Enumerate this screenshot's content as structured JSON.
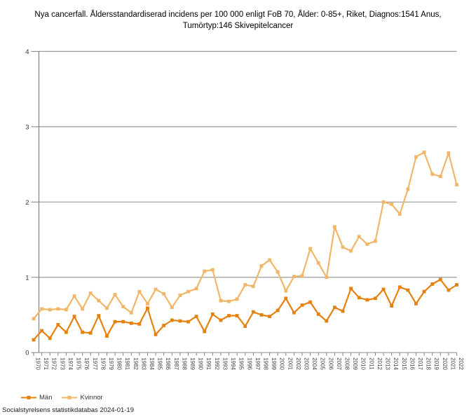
{
  "title": "Nya cancerfall. Åldersstandardiserad incidens per 100 000 enligt FoB 70, Ålder: 0-85+, Riket, Diagnos:1541 Anus, Tumörtyp:146 Skivepitelcancer",
  "source": "Socialstyrelsens statistikdatabas 2024-01-19",
  "colors": {
    "men_series": "#E6810E",
    "women_series": "#F2B669",
    "gridline": "#9A9A9A",
    "axis": "#808080",
    "tick_label": "#444444"
  },
  "legend": {
    "items": [
      "Män",
      "Kvinnor"
    ]
  },
  "chart_data": {
    "type": "line",
    "title": "Nya cancerfall. Åldersstandardiserad incidens per 100 000 enligt FoB 70, Ålder: 0-85+, Riket, Diagnos:1541 Anus, Tumörtyp:146 Skivepitelcancer",
    "x": [
      1970,
      1971,
      1972,
      1973,
      1974,
      1975,
      1976,
      1977,
      1978,
      1979,
      1980,
      1981,
      1982,
      1983,
      1984,
      1985,
      1986,
      1987,
      1988,
      1989,
      1990,
      1991,
      1992,
      1993,
      1994,
      1995,
      1996,
      1997,
      1998,
      1999,
      2000,
      2001,
      2002,
      2003,
      2004,
      2005,
      2006,
      2007,
      2008,
      2009,
      2010,
      2011,
      2012,
      2013,
      2014,
      2015,
      2016,
      2017,
      2018,
      2019,
      2020,
      2021,
      2022
    ],
    "series": [
      {
        "name": "Män",
        "color": "#E6810E",
        "values": [
          0.17,
          0.29,
          0.19,
          0.37,
          0.27,
          0.48,
          0.27,
          0.26,
          0.49,
          0.22,
          0.41,
          0.41,
          0.39,
          0.38,
          0.59,
          0.24,
          0.36,
          0.43,
          0.42,
          0.41,
          0.48,
          0.28,
          0.51,
          0.43,
          0.49,
          0.49,
          0.35,
          0.54,
          0.5,
          0.48,
          0.56,
          0.72,
          0.53,
          0.63,
          0.67,
          0.51,
          0.42,
          0.6,
          0.55,
          0.85,
          0.73,
          0.7,
          0.72,
          0.84,
          0.62,
          0.87,
          0.83,
          0.65,
          0.81,
          0.91,
          0.97,
          0.83,
          0.9
        ]
      },
      {
        "name": "Kvinnor",
        "color": "#F2B669",
        "values": [
          0.45,
          0.58,
          0.57,
          0.58,
          0.57,
          0.75,
          0.58,
          0.79,
          0.69,
          0.59,
          0.77,
          0.61,
          0.53,
          0.81,
          0.65,
          0.84,
          0.78,
          0.6,
          0.76,
          0.81,
          0.85,
          1.08,
          1.1,
          0.69,
          0.68,
          0.71,
          0.9,
          0.88,
          1.15,
          1.23,
          1.07,
          0.82,
          1.01,
          1.02,
          1.38,
          1.19,
          1.0,
          1.67,
          1.4,
          1.35,
          1.54,
          1.44,
          1.48,
          2.0,
          1.97,
          1.84,
          2.17,
          2.6,
          2.66,
          2.37,
          2.34,
          2.65,
          2.23
        ]
      }
    ],
    "xlabel": "",
    "ylabel": "",
    "ylim": [
      0,
      4
    ],
    "yticks": [
      0,
      1,
      2,
      3,
      4
    ],
    "grid": true,
    "legend_position": "bottom-left"
  }
}
